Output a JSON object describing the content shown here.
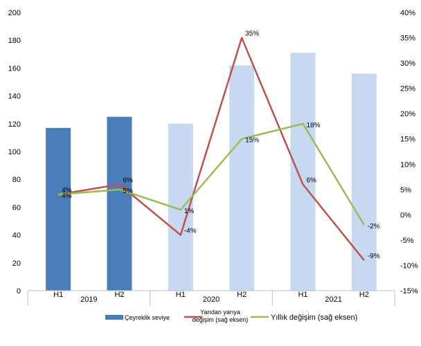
{
  "chart_data": {
    "type": "bar+line",
    "categories": [
      "H1",
      "H2",
      "H1",
      "H2",
      "H1",
      "H2"
    ],
    "groups": [
      {
        "label": "2019",
        "span": [
          0,
          1
        ]
      },
      {
        "label": "2020",
        "span": [
          2,
          3
        ]
      },
      {
        "label": "2021",
        "span": [
          4,
          5
        ]
      }
    ],
    "left_axis": {
      "min": 0,
      "max": 200,
      "step": 20,
      "ticks": [
        "0",
        "20",
        "40",
        "60",
        "80",
        "100",
        "120",
        "140",
        "160",
        "180",
        "200"
      ]
    },
    "right_axis": {
      "min": -15,
      "max": 40,
      "step": 5,
      "ticks": [
        "-15%",
        "-10%",
        "-5%",
        "0%",
        "5%",
        "10%",
        "15%",
        "20%",
        "25%",
        "30%",
        "35%",
        "40%"
      ]
    },
    "bars": {
      "name": "Çeyreklik seviye",
      "values": [
        117,
        125,
        120,
        162,
        171,
        156
      ],
      "colors": [
        "#4a7ebb",
        "#4a7ebb",
        "#c6d9f1",
        "#c6d9f1",
        "#c6d9f1",
        "#c6d9f1"
      ],
      "legend_color": "#4a7ebb"
    },
    "lines": [
      {
        "name": "Yarıdan yarıya değişim (sağ eksen)",
        "color": "#c0504d",
        "values": [
          4,
          6,
          -4,
          35,
          6,
          -9
        ],
        "labels": [
          "4%",
          "6%",
          "-4%",
          "35%",
          "6%",
          "-9%"
        ]
      },
      {
        "name": "Yıllık değişim (sağ eksen)",
        "color": "#9bbb59",
        "values": [
          4,
          5,
          1,
          15,
          18,
          -2
        ],
        "labels": [
          "4%",
          "5%",
          "1%",
          "15%",
          "18%",
          "-2%"
        ]
      }
    ],
    "legend": {
      "bar_label": "Çeyreklik seviye",
      "line1_label_l1": "Yarıdan yarıya",
      "line1_label_l2": "değişim (sağ eksen)",
      "line2_label": "Yıllık değişim (sağ eksen)"
    }
  }
}
